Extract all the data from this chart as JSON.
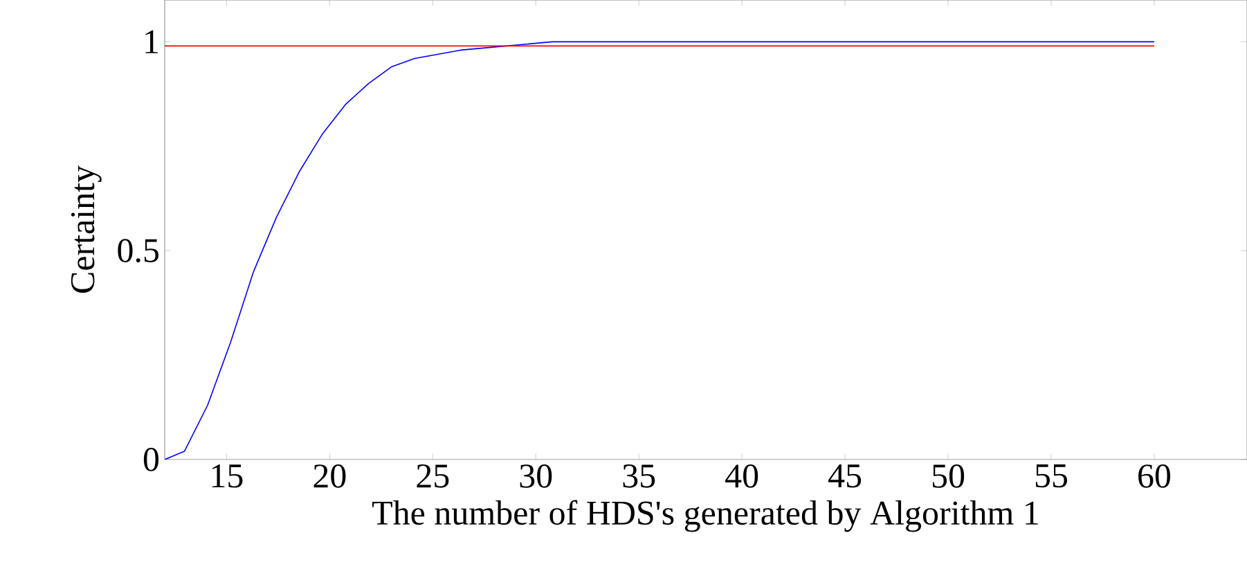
{
  "chart_data": {
    "type": "line",
    "xlabel": "The number of HDS's generated by Algorithm 1",
    "ylabel": "Certainty",
    "xlim": [
      12,
      64.5
    ],
    "ylim": [
      0,
      1.1
    ],
    "xticks": [
      15,
      20,
      25,
      30,
      35,
      40,
      45,
      50,
      55,
      60
    ],
    "yticks": [
      0,
      {
        "value": 0.5,
        "label": "0.5"
      },
      1
    ],
    "grid": false,
    "marker": "none",
    "line_style": "solid",
    "series": [
      {
        "color": "#0000ff",
        "x": [
          12,
          12.96,
          14.08,
          15.19,
          16.31,
          17.42,
          18.54,
          19.66,
          20.77,
          21.89,
          23.0,
          24.12,
          26.35,
          28.58,
          30.8,
          35,
          40,
          50,
          60
        ],
        "values": [
          0,
          0.02,
          0.13,
          0.28,
          0.45,
          0.58,
          0.69,
          0.78,
          0.85,
          0.9,
          0.94,
          0.96,
          0.98,
          0.99,
          1.0,
          1.0,
          1.0,
          1.0,
          1.0
        ]
      },
      {
        "color": "#ff0000",
        "x": [
          12,
          60
        ],
        "values": [
          0.99,
          0.99
        ]
      }
    ]
  }
}
